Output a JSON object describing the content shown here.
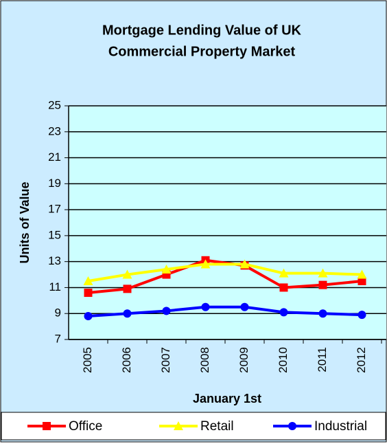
{
  "chart_data": {
    "type": "line",
    "title": [
      "Mortgage Lending Value of UK",
      "Commercial Property Market"
    ],
    "x_label": "January 1st",
    "y_label": "Units of Value",
    "categories": [
      "2005",
      "2006",
      "2007",
      "2008",
      "2009",
      "2010",
      "2011",
      "2012"
    ],
    "series": [
      {
        "name": "Office",
        "color": "#ff0000",
        "marker": "square",
        "values": [
          10.6,
          10.9,
          12.0,
          13.1,
          12.7,
          11.0,
          11.2,
          11.5
        ]
      },
      {
        "name": "Retail",
        "color": "#ffff00",
        "marker": "triangle",
        "values": [
          11.5,
          12.0,
          12.4,
          12.8,
          12.8,
          12.1,
          12.1,
          12.0
        ]
      },
      {
        "name": "Industrial",
        "color": "#0000ff",
        "marker": "circle",
        "values": [
          8.8,
          9.0,
          9.2,
          9.5,
          9.5,
          9.1,
          9.0,
          8.9
        ]
      }
    ],
    "ylim": [
      7,
      25
    ],
    "yticks": [
      7,
      9,
      11,
      13,
      15,
      17,
      19,
      21,
      23,
      25
    ],
    "grid": true,
    "legend": "bottom"
  }
}
